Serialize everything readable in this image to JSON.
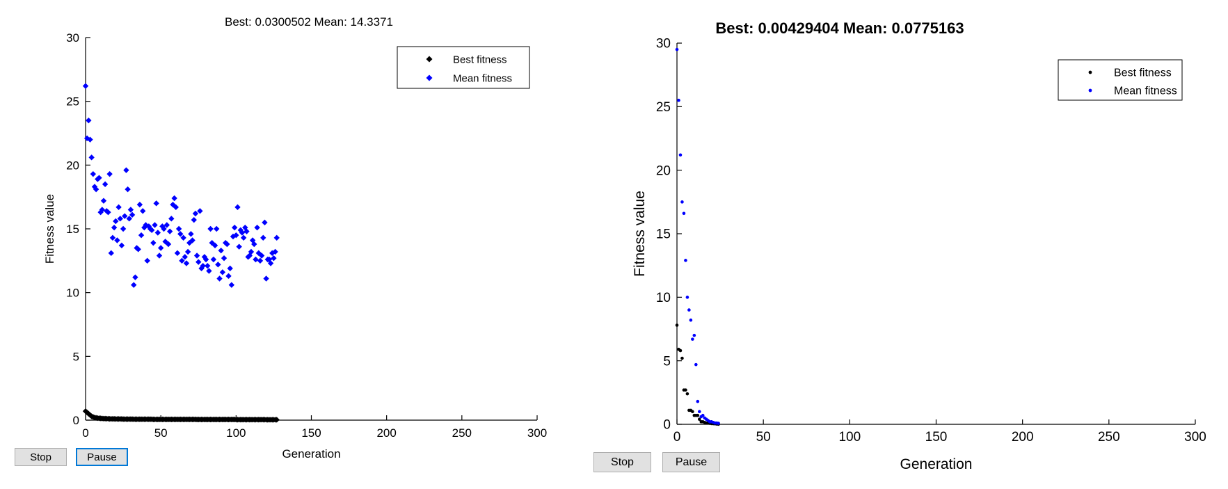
{
  "colors": {
    "best": "#000000",
    "mean": "#0000ff",
    "axis": "#000000",
    "background": "#ffffff"
  },
  "chart_data": [
    {
      "type": "scatter",
      "title": "Best: 0.0300502 Mean: 14.3371",
      "xlabel": "Generation",
      "ylabel": "Fitness value",
      "xlim": [
        0,
        300
      ],
      "ylim": [
        0,
        30
      ],
      "xticks": [
        "0",
        "50",
        "100",
        "150",
        "200",
        "250",
        "300"
      ],
      "yticks": [
        "0",
        "5",
        "10",
        "15",
        "20",
        "25",
        "30"
      ],
      "grid": false,
      "legend_position": "top-right",
      "marker": "diamond",
      "buttons": {
        "stop": "Stop",
        "pause": "Pause"
      },
      "series": [
        {
          "name": "Best fitness",
          "x": [
            0,
            1,
            2,
            3,
            4,
            5,
            6,
            7,
            8,
            9,
            10,
            11,
            12,
            13,
            14,
            15,
            16,
            17,
            18,
            19,
            20,
            21,
            22,
            23,
            24,
            25,
            26,
            27,
            28,
            29,
            30,
            31,
            32,
            33,
            34,
            35,
            36,
            37,
            38,
            39,
            40,
            41,
            42,
            43,
            44,
            45,
            46,
            47,
            48,
            49,
            50,
            51,
            52,
            53,
            54,
            55,
            56,
            57,
            58,
            59,
            60,
            61,
            62,
            63,
            64,
            65,
            66,
            67,
            68,
            69,
            70,
            71,
            72,
            73,
            74,
            75,
            76,
            77,
            78,
            79,
            80,
            81,
            82,
            83,
            84,
            85,
            86,
            87,
            88,
            89,
            90,
            91,
            92,
            93,
            94,
            95,
            96,
            97,
            98,
            99,
            100,
            101,
            102,
            103,
            104,
            105,
            106,
            107,
            108,
            109,
            110,
            111,
            112,
            113,
            114,
            115,
            116,
            117,
            118,
            119,
            120,
            121,
            122,
            123,
            124,
            125,
            126,
            127
          ],
          "y": [
            0.7,
            0.6,
            0.5,
            0.4,
            0.3,
            0.25,
            0.2,
            0.18,
            0.16,
            0.15,
            0.14,
            0.13,
            0.12,
            0.12,
            0.11,
            0.11,
            0.1,
            0.1,
            0.1,
            0.1,
            0.09,
            0.09,
            0.09,
            0.09,
            0.09,
            0.08,
            0.08,
            0.08,
            0.08,
            0.08,
            0.08,
            0.08,
            0.07,
            0.07,
            0.07,
            0.07,
            0.07,
            0.07,
            0.07,
            0.07,
            0.07,
            0.07,
            0.07,
            0.07,
            0.07,
            0.06,
            0.06,
            0.06,
            0.06,
            0.06,
            0.06,
            0.06,
            0.06,
            0.06,
            0.06,
            0.06,
            0.06,
            0.06,
            0.06,
            0.06,
            0.06,
            0.06,
            0.06,
            0.06,
            0.06,
            0.06,
            0.06,
            0.06,
            0.06,
            0.06,
            0.06,
            0.06,
            0.06,
            0.06,
            0.05,
            0.05,
            0.05,
            0.05,
            0.05,
            0.05,
            0.05,
            0.05,
            0.05,
            0.05,
            0.05,
            0.05,
            0.05,
            0.05,
            0.05,
            0.05,
            0.05,
            0.05,
            0.05,
            0.05,
            0.05,
            0.05,
            0.05,
            0.05,
            0.05,
            0.05,
            0.04,
            0.04,
            0.04,
            0.04,
            0.04,
            0.04,
            0.04,
            0.04,
            0.04,
            0.04,
            0.04,
            0.04,
            0.04,
            0.04,
            0.04,
            0.04,
            0.04,
            0.04,
            0.04,
            0.04,
            0.03,
            0.03,
            0.03,
            0.03,
            0.03,
            0.03,
            0.03,
            0.03
          ]
        },
        {
          "name": "Mean fitness",
          "x": [
            0,
            1,
            2,
            3,
            4,
            5,
            6,
            7,
            8,
            9,
            10,
            11,
            12,
            13,
            14,
            15,
            16,
            17,
            18,
            19,
            20,
            21,
            22,
            23,
            24,
            25,
            26,
            27,
            28,
            29,
            30,
            31,
            32,
            33,
            34,
            35,
            36,
            37,
            38,
            39,
            40,
            41,
            42,
            43,
            44,
            45,
            46,
            47,
            48,
            49,
            50,
            51,
            52,
            53,
            54,
            55,
            56,
            57,
            58,
            59,
            60,
            61,
            62,
            63,
            64,
            65,
            66,
            67,
            68,
            69,
            70,
            71,
            72,
            73,
            74,
            75,
            76,
            77,
            78,
            79,
            80,
            81,
            82,
            83,
            84,
            85,
            86,
            87,
            88,
            89,
            90,
            91,
            92,
            93,
            94,
            95,
            96,
            97,
            98,
            99,
            100,
            101,
            102,
            103,
            104,
            105,
            106,
            107,
            108,
            109,
            110,
            111,
            112,
            113,
            114,
            115,
            116,
            117,
            118,
            119,
            120,
            121,
            122,
            123,
            124,
            125,
            126,
            127
          ],
          "y": [
            26.2,
            22.1,
            23.5,
            22,
            20.6,
            19.3,
            18.3,
            18.1,
            18.9,
            19,
            16.3,
            16.5,
            17.2,
            18.5,
            16.4,
            16.3,
            19.3,
            13.1,
            14.3,
            15.1,
            15.6,
            14.1,
            16.7,
            15.8,
            13.7,
            15,
            16,
            19.6,
            18.1,
            15.8,
            16.5,
            16.1,
            10.6,
            11.2,
            13.5,
            13.4,
            16.9,
            14.5,
            16.4,
            15.1,
            15.3,
            12.5,
            15.2,
            15,
            14.9,
            13.9,
            15.3,
            17,
            14.7,
            12.9,
            13.5,
            15.2,
            15,
            14,
            15.3,
            13.8,
            14.8,
            15.8,
            16.9,
            17.4,
            16.7,
            13.1,
            15,
            14.6,
            12.5,
            14.3,
            12.8,
            12.3,
            13.2,
            13.9,
            14.6,
            14.1,
            15.7,
            16.2,
            12.9,
            12.4,
            16.4,
            11.9,
            12.1,
            12.8,
            12.6,
            12.1,
            11.7,
            15,
            13.9,
            12.6,
            13.7,
            15,
            12.2,
            11.1,
            13.3,
            11.6,
            12.7,
            13.9,
            13.8,
            11.3,
            11.9,
            10.6,
            14.4,
            15.1,
            14.5,
            16.7,
            13.6,
            14.9,
            14.7,
            14.3,
            15.1,
            14.8,
            12.8,
            12.9,
            13.2,
            14.1,
            13.8,
            12.6,
            15.1,
            13.1,
            12.5,
            12.9,
            14.3,
            15.5,
            11.1,
            12.6,
            12.6,
            12.3,
            13.1,
            12.7,
            13.2,
            14.3
          ]
        }
      ]
    },
    {
      "type": "scatter",
      "title": "Best: 0.00429404 Mean: 0.0775163",
      "xlabel": "Generation",
      "ylabel": "Fitness value",
      "xlim": [
        0,
        300
      ],
      "ylim": [
        0,
        30
      ],
      "xticks": [
        "0",
        "50",
        "100",
        "150",
        "200",
        "250",
        "300"
      ],
      "yticks": [
        "0",
        "5",
        "10",
        "15",
        "20",
        "25",
        "30"
      ],
      "grid": false,
      "legend_position": "top-right",
      "marker": "dot",
      "buttons": {
        "stop": "Stop",
        "pause": "Pause"
      },
      "series": [
        {
          "name": "Best fitness",
          "x": [
            0,
            1,
            2,
            3,
            4,
            5,
            6,
            7,
            8,
            9,
            10,
            11,
            12,
            13,
            14,
            15,
            16,
            17,
            18,
            19,
            20,
            21,
            22,
            23,
            24
          ],
          "y": [
            7.8,
            5.9,
            5.8,
            5.2,
            2.7,
            2.7,
            2.4,
            1.1,
            1.1,
            1,
            0.7,
            0.7,
            0.7,
            0.4,
            0.2,
            0.2,
            0.15,
            0.1,
            0.1,
            0.08,
            0.06,
            0.05,
            0.04,
            0.02,
            0.01
          ]
        },
        {
          "name": "Mean fitness",
          "x": [
            0,
            1,
            2,
            3,
            4,
            5,
            6,
            7,
            8,
            9,
            10,
            11,
            12,
            13,
            14,
            15,
            16,
            17,
            18,
            19,
            20,
            21,
            22,
            23,
            24
          ],
          "y": [
            29.5,
            25.5,
            21.2,
            17.5,
            16.6,
            12.9,
            10,
            9,
            8.2,
            6.7,
            7,
            4.7,
            1.8,
            1,
            0.6,
            0.7,
            0.5,
            0.4,
            0.3,
            0.2,
            0.2,
            0.15,
            0.1,
            0.1,
            0.08
          ]
        }
      ]
    }
  ]
}
